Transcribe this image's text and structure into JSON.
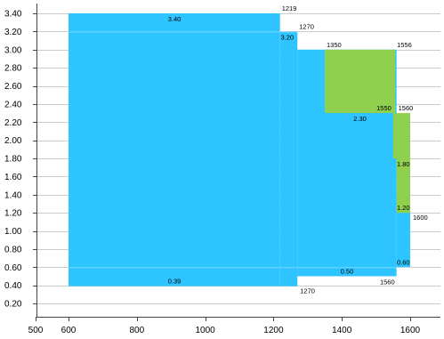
{
  "chart_data": {
    "type": "area",
    "title": "",
    "xlabel": "",
    "ylabel": "",
    "xlim": [
      500,
      1650
    ],
    "ylim": [
      0,
      3.45
    ],
    "x_ticks": [
      "500",
      "600",
      "800",
      "1000",
      "1200",
      "1400",
      "1600"
    ],
    "y_ticks": [
      "0.20",
      "0.40",
      "0.60",
      "0.80",
      "1.00",
      "1.20",
      "1.40",
      "1.60",
      "1.80",
      "2.00",
      "2.20",
      "2.40",
      "2.60",
      "2.80",
      "3.00",
      "3.20",
      "3.40"
    ],
    "grid": "horizontal",
    "regions": [
      {
        "name": "",
        "color": "#2EC4FF",
        "x0": 600,
        "x1": 1219,
        "y0": 0.39,
        "y1": 3.4
      },
      {
        "name": "",
        "color": "#2EC4FF",
        "x0": 1219,
        "x1": 1270,
        "y0": 0.39,
        "y1": 3.2
      },
      {
        "name": "",
        "color": "#2EC4FF",
        "x0": 1270,
        "x1": 1560,
        "y0": 0.5,
        "y1": 3.0
      },
      {
        "name": "",
        "color": "#2EC4FF",
        "x0": 1560,
        "x1": 1600,
        "y0": 0.6,
        "y1": 1.2
      },
      {
        "name": "",
        "color": "#8FD14F",
        "x0": 1350,
        "x1": 1556,
        "y0": 2.3,
        "y1": 3.0
      },
      {
        "name": "",
        "color": "#8FD14F",
        "x0": 1550,
        "x1": 1600,
        "y0": 1.8,
        "y1": 2.3
      },
      {
        "name": "",
        "color": "#8FD14F",
        "x0": 1560,
        "x1": 1600,
        "y0": 1.2,
        "y1": 1.8
      }
    ],
    "annotations": [
      {
        "text": "1219",
        "x": 1219,
        "y": 3.4,
        "pos": "above-right"
      },
      {
        "text": "3.40",
        "x": 910,
        "y": 3.4,
        "pos": "below"
      },
      {
        "text": "1270",
        "x": 1270,
        "y": 3.2,
        "pos": "above-right"
      },
      {
        "text": "3.20",
        "x": 1240,
        "y": 3.2,
        "pos": "below"
      },
      {
        "text": "1350",
        "x": 1350,
        "y": 3.0,
        "pos": "above-right"
      },
      {
        "text": "1556",
        "x": 1556,
        "y": 3.0,
        "pos": "above-right"
      },
      {
        "text": "1550",
        "x": 1550,
        "y": 2.3,
        "pos": "above-left"
      },
      {
        "text": "1560",
        "x": 1560,
        "y": 2.3,
        "pos": "above-right"
      },
      {
        "text": "2.30",
        "x": 1453,
        "y": 2.3,
        "pos": "below"
      },
      {
        "text": "1.80",
        "x": 1580,
        "y": 1.8,
        "pos": "below"
      },
      {
        "text": "1.20",
        "x": 1580,
        "y": 1.2,
        "pos": "above"
      },
      {
        "text": "1600",
        "x": 1600,
        "y": 1.2,
        "pos": "below-right"
      },
      {
        "text": "0.60",
        "x": 1580,
        "y": 0.6,
        "pos": "above"
      },
      {
        "text": "0.50",
        "x": 1415,
        "y": 0.5,
        "pos": "above"
      },
      {
        "text": "1560",
        "x": 1560,
        "y": 0.5,
        "pos": "below-left"
      },
      {
        "text": "0.39",
        "x": 910,
        "y": 0.39,
        "pos": "above"
      },
      {
        "text": "1270",
        "x": 1270,
        "y": 0.39,
        "pos": "below-right"
      }
    ]
  }
}
